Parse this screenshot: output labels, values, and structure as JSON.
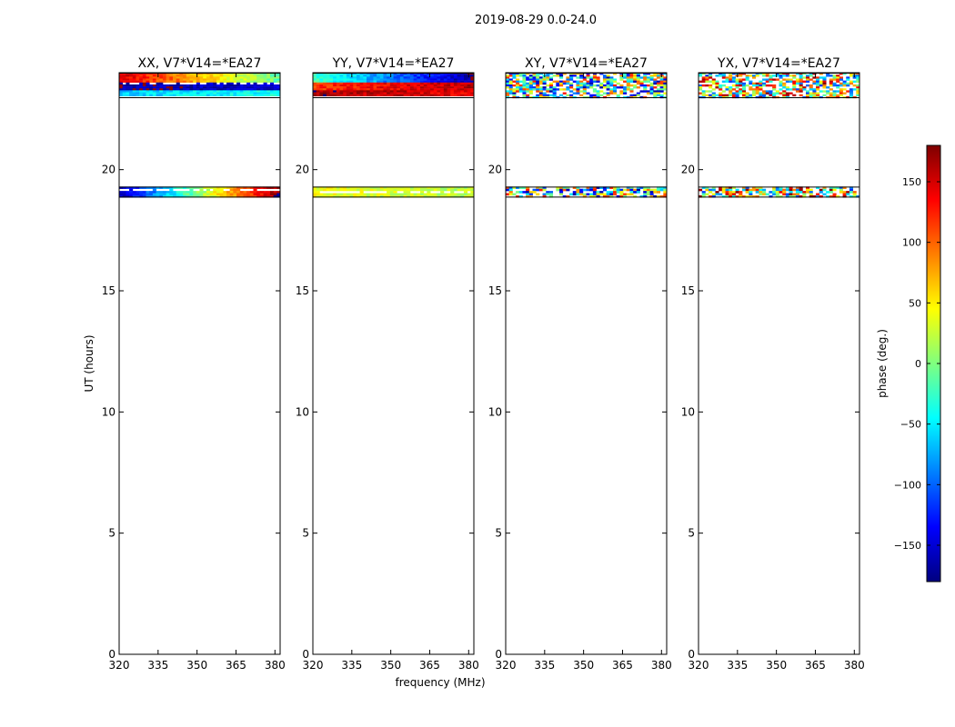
{
  "chart_data": {
    "type": "heatmap",
    "suptitle": "2019-08-29 0.0-24.0",
    "xlabel": "frequency (MHz)",
    "ylabel": "UT (hours)",
    "xlim": [
      320,
      382
    ],
    "ylim": [
      0,
      24
    ],
    "xticks": [
      320,
      335,
      350,
      365,
      380
    ],
    "yticks": [
      0,
      5,
      10,
      15,
      20
    ],
    "colorbar": {
      "label": "phase (deg.)",
      "range": [
        -180,
        180
      ],
      "ticks": [
        150,
        100,
        50,
        0,
        -50,
        -100,
        -150
      ],
      "tick_labels": [
        "150",
        "100",
        "50",
        "0",
        "−50",
        "−100",
        "−150"
      ],
      "colormap": [
        "#00007f",
        "#0000ff",
        "#007fff",
        "#00ffff",
        "#7fff7f",
        "#ffff00",
        "#ff7f00",
        "#ff0000",
        "#7f0000"
      ]
    },
    "time_bands_hours": [
      [
        18.85,
        19.3
      ],
      [
        22.95,
        24.0
      ]
    ],
    "panels": [
      {
        "title": "XX, V7*V14=*EA27",
        "mode": "coherent",
        "band_phase": [
          {
            "range": [
              18.85,
              19.3
            ],
            "start_deg": -160,
            "end_deg": 175
          },
          {
            "range": [
              23.0,
              23.3
            ],
            "start_deg": -60,
            "end_deg": -40
          },
          {
            "range": [
              23.3,
              23.6
            ],
            "start_deg": -170,
            "end_deg": -150
          },
          {
            "range": [
              23.6,
              24.0
            ],
            "start_deg": 150,
            "end_deg": -10
          }
        ]
      },
      {
        "title": "YY, V7*V14=*EA27",
        "mode": "coherent",
        "band_phase": [
          {
            "range": [
              18.85,
              19.3
            ],
            "start_deg": 40,
            "end_deg": 20
          },
          {
            "range": [
              23.0,
              23.3
            ],
            "start_deg": 170,
            "end_deg": 140
          },
          {
            "range": [
              23.3,
              23.6
            ],
            "start_deg": 120,
            "end_deg": 160
          },
          {
            "range": [
              23.6,
              24.0
            ],
            "start_deg": -20,
            "end_deg": -170
          }
        ]
      },
      {
        "title": "XY, V7*V14=*EA27",
        "mode": "noise",
        "center_deg": -20
      },
      {
        "title": "YX, V7*V14=*EA27",
        "mode": "noise",
        "center_deg": 30
      }
    ]
  }
}
